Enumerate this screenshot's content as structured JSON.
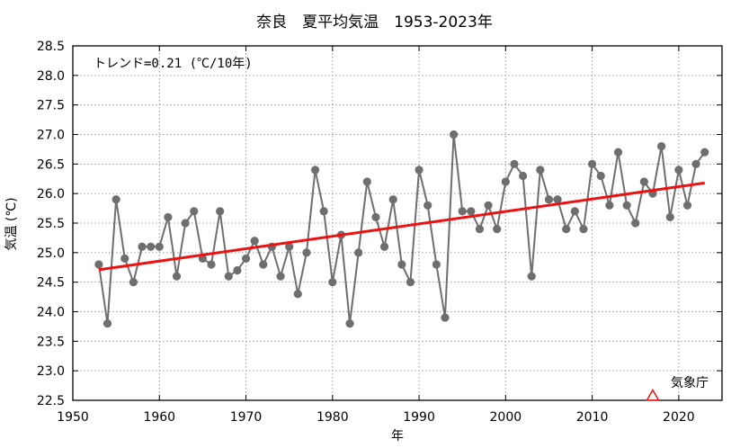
{
  "chart_data": {
    "type": "line",
    "title": "奈良　夏平均気温　1953-2023年",
    "xlabel": "年",
    "ylabel": "気温 (℃)",
    "xlim": [
      1950,
      2025
    ],
    "ylim": [
      22.5,
      28.5
    ],
    "x_ticks": [
      1950,
      1960,
      1970,
      1980,
      1990,
      2000,
      2010,
      2020
    ],
    "x_tick_labels": [
      "1950",
      "1960",
      "1970",
      "1980",
      "1990",
      "2000",
      "2010",
      "2020"
    ],
    "y_ticks": [
      22.5,
      23.0,
      23.5,
      24.0,
      24.5,
      25.0,
      25.5,
      26.0,
      26.5,
      27.0,
      27.5,
      28.0,
      28.5
    ],
    "y_tick_labels": [
      "22.5",
      "23.0",
      "23.5",
      "24.0",
      "24.5",
      "25.0",
      "25.5",
      "26.0",
      "26.5",
      "27.0",
      "27.5",
      "28.0",
      "28.5"
    ],
    "grid": true,
    "trend_text": "トレンド=0.21 (℃/10年)",
    "source_label": "気象庁",
    "colors": {
      "series": "#6e6e6e",
      "trend": "#ee1111",
      "marker_triangle": "#ee1111",
      "grid": "#999999"
    },
    "series": [
      {
        "x": [
          1953,
          1954,
          1955,
          1956,
          1957,
          1958,
          1959,
          1960,
          1961,
          1962,
          1963,
          1964,
          1965,
          1966,
          1967,
          1968,
          1969,
          1970,
          1971,
          1972,
          1973,
          1974,
          1975,
          1976,
          1977,
          1978,
          1979,
          1980,
          1981,
          1982,
          1983,
          1984,
          1985,
          1986,
          1987,
          1988,
          1989,
          1990,
          1991,
          1992,
          1993,
          1994,
          1995,
          1996,
          1997,
          1998,
          1999,
          2000,
          2001,
          2002,
          2003,
          2004,
          2005,
          2006,
          2007,
          2008,
          2009,
          2010,
          2011,
          2012,
          2013,
          2014,
          2015,
          2016,
          2017,
          2018,
          2019,
          2020,
          2021,
          2022,
          2023
        ],
        "values": [
          24.8,
          23.8,
          25.9,
          24.9,
          24.5,
          25.1,
          25.1,
          25.1,
          25.6,
          24.6,
          25.5,
          25.7,
          24.9,
          24.8,
          25.7,
          24.6,
          24.7,
          24.9,
          25.2,
          24.8,
          25.1,
          24.6,
          25.1,
          24.3,
          25.0,
          26.4,
          25.7,
          24.5,
          25.3,
          23.8,
          25.0,
          26.2,
          25.6,
          25.1,
          25.9,
          24.8,
          24.5,
          26.4,
          25.8,
          24.8,
          23.9,
          27.0,
          25.7,
          25.7,
          25.4,
          25.8,
          25.4,
          26.2,
          26.5,
          26.3,
          24.6,
          26.4,
          25.9,
          25.9,
          25.4,
          25.7,
          25.4,
          26.5,
          26.3,
          25.8,
          26.7,
          25.8,
          25.5,
          26.2,
          26.0,
          26.8,
          25.6,
          26.4,
          25.8,
          26.5,
          26.7
        ]
      }
    ],
    "trend_line": {
      "x": [
        1953,
        2023
      ],
      "y": [
        24.71,
        26.18
      ]
    },
    "markers": [
      {
        "shape": "triangle",
        "x": 2017,
        "y": 22.5
      }
    ]
  }
}
